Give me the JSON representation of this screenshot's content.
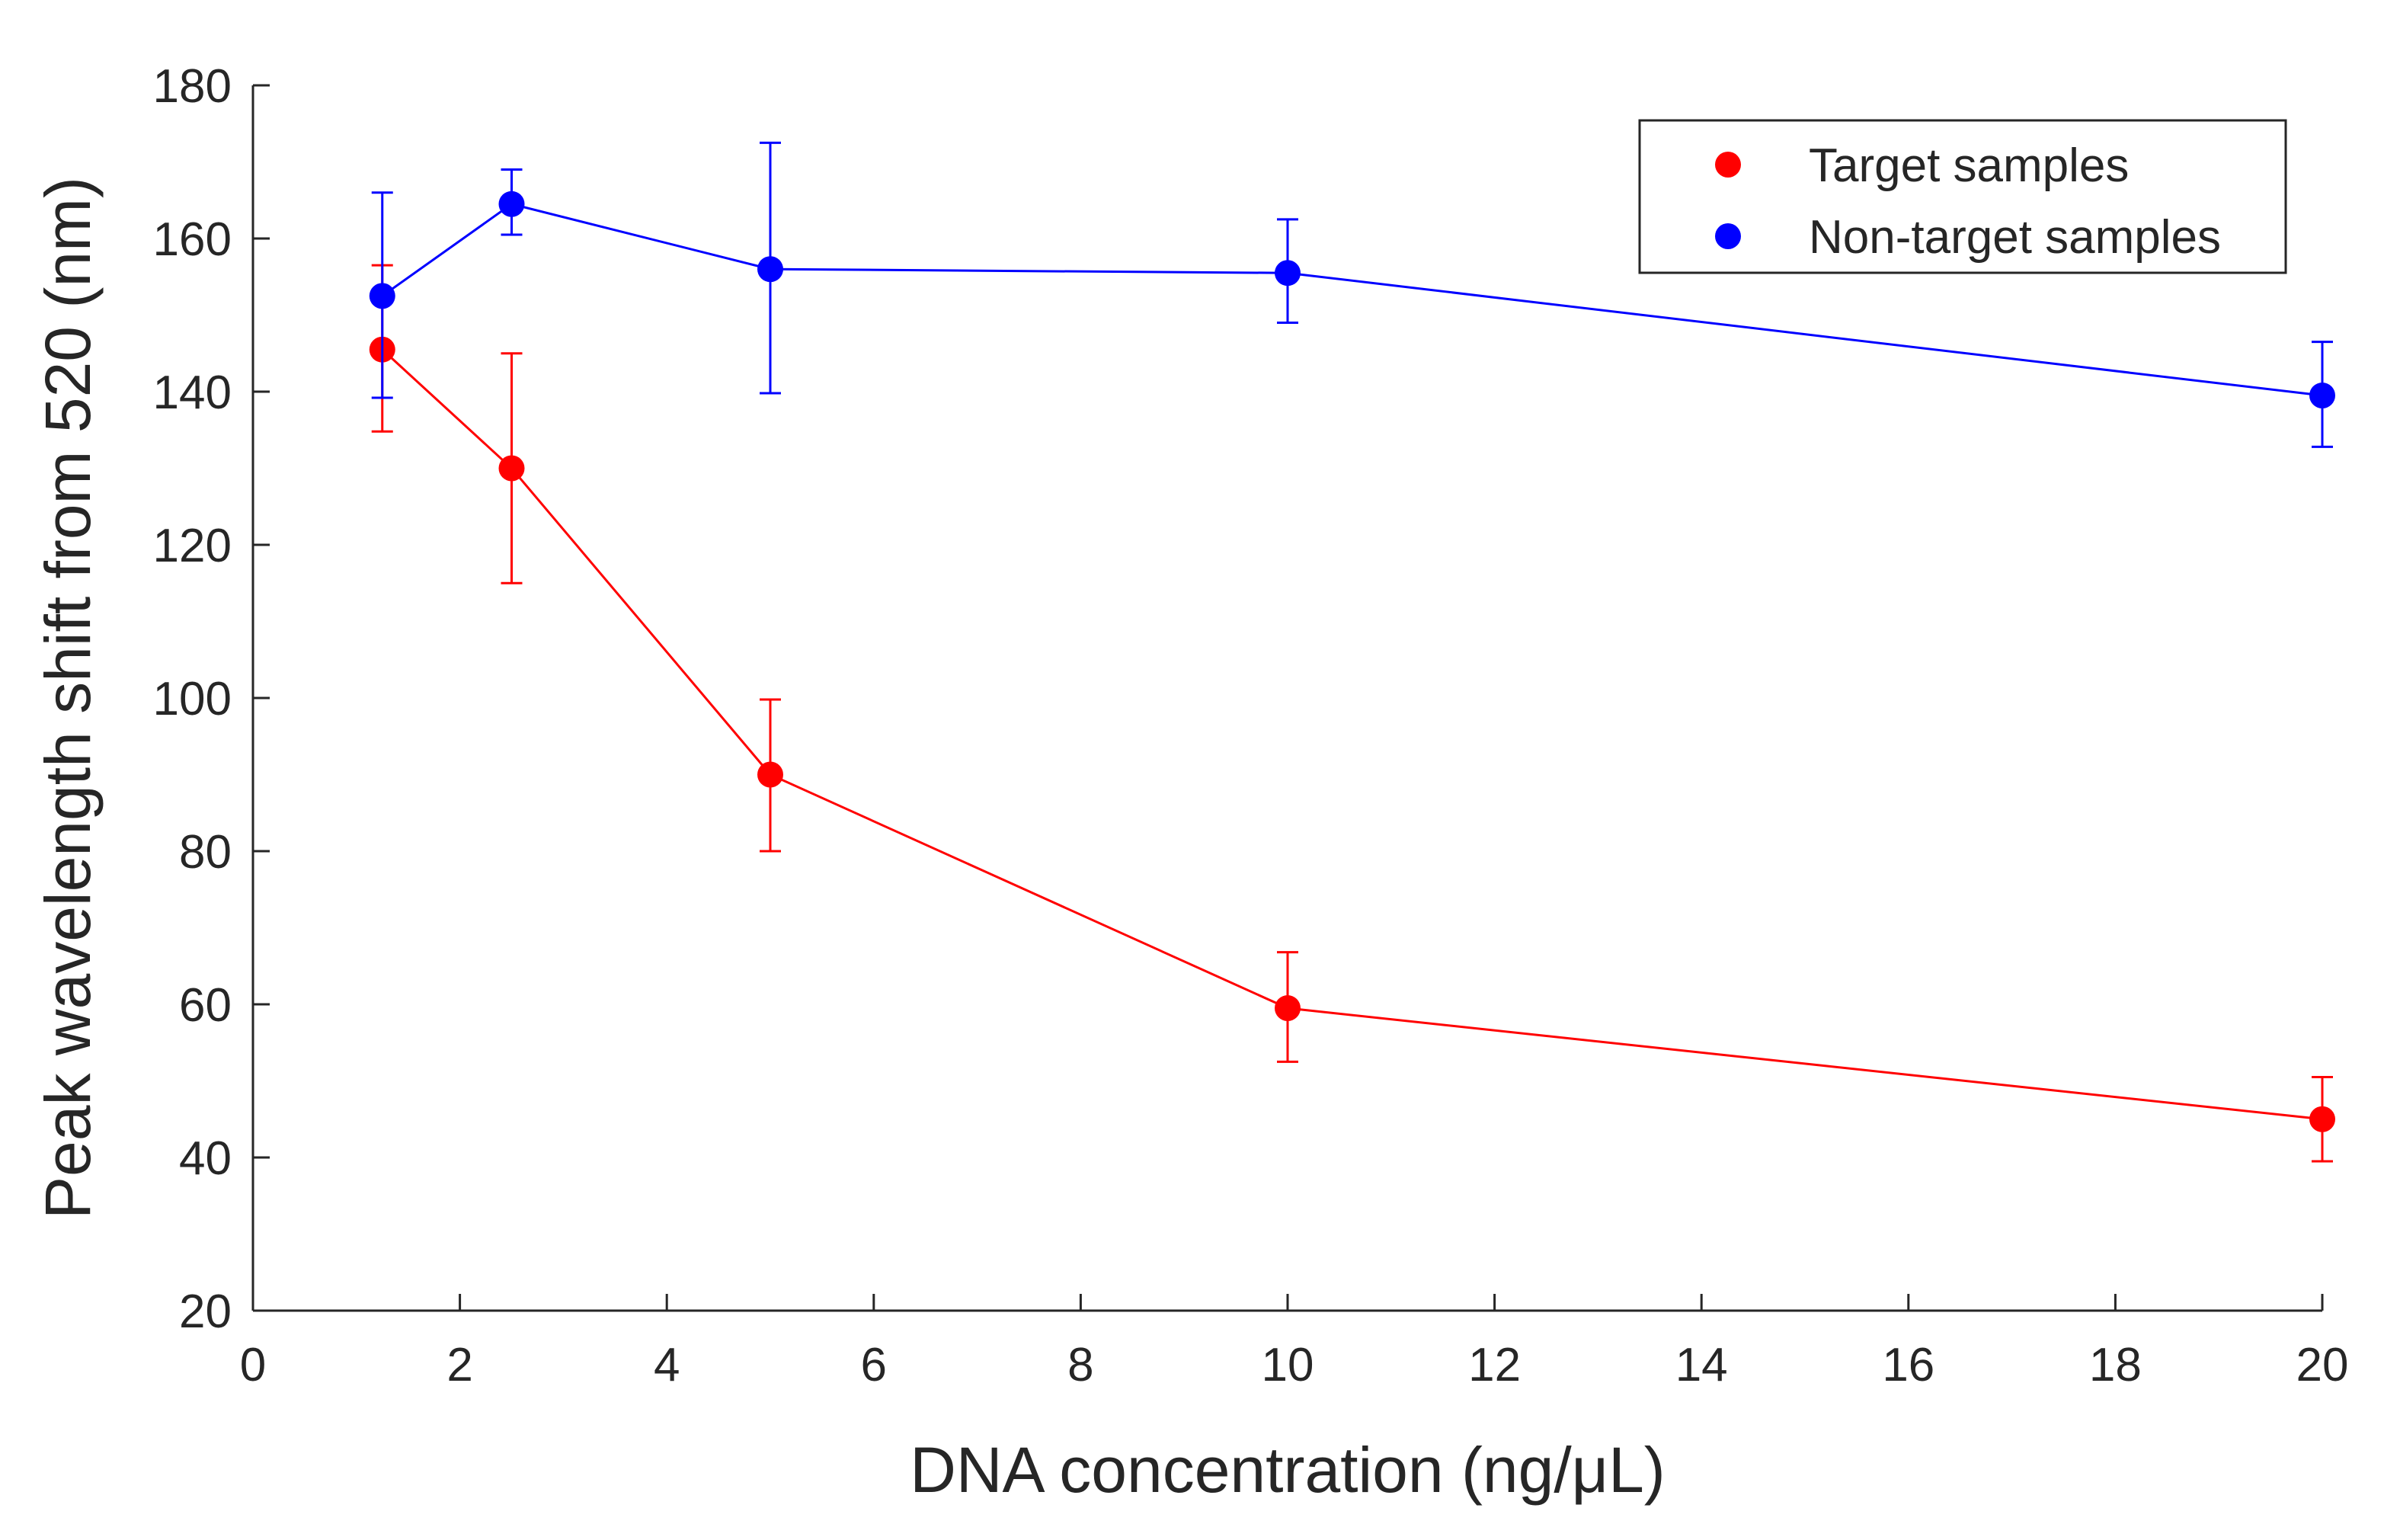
{
  "chart_data": {
    "type": "line",
    "title": "",
    "xlabel": "DNA concentration (ng/μL)",
    "ylabel": "Peak wavelength shift from 520 (nm)",
    "xlim": [
      0,
      20
    ],
    "ylim": [
      20,
      180
    ],
    "x_ticks": [
      0,
      2,
      4,
      6,
      8,
      10,
      12,
      14,
      16,
      18,
      20
    ],
    "y_ticks": [
      20,
      40,
      60,
      80,
      100,
      120,
      140,
      160,
      180
    ],
    "grid": false,
    "legend_position": "top-right",
    "series": [
      {
        "name": "Target samples",
        "color": "#ff0000",
        "x": [
          1.25,
          2.5,
          5,
          10,
          20
        ],
        "y": [
          145.5,
          130,
          90,
          59.5,
          45
        ],
        "error_low": [
          134.8,
          115,
          80,
          52.5,
          39.5
        ],
        "error_high": [
          156.5,
          145,
          99.8,
          66.8,
          50.5
        ]
      },
      {
        "name": "Non-target samples",
        "color": "#0000ff",
        "x": [
          1.25,
          2.5,
          5,
          10,
          20
        ],
        "y": [
          152.5,
          164.5,
          156,
          155.5,
          139.5
        ],
        "error_low": [
          139.2,
          160.5,
          139.8,
          149,
          132.8
        ],
        "error_high": [
          166,
          169,
          172.5,
          162.5,
          146.5
        ]
      }
    ]
  }
}
